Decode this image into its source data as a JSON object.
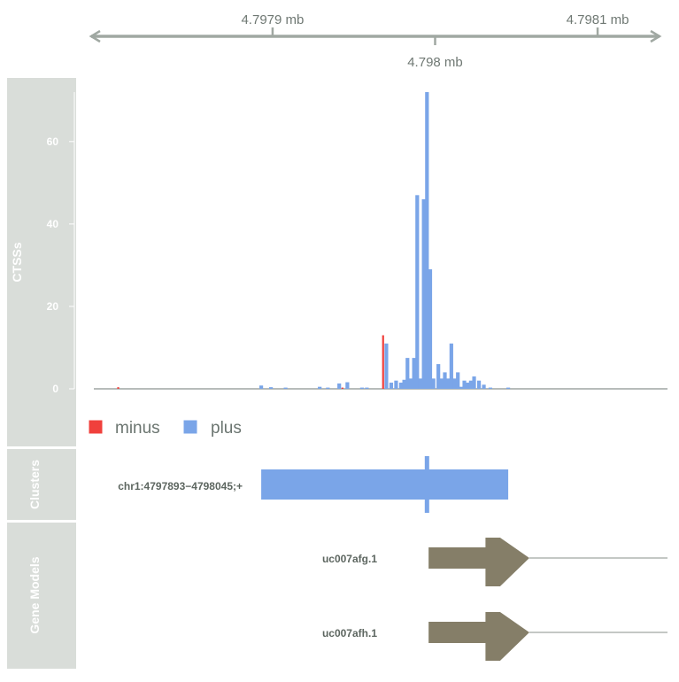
{
  "colors": {
    "plus": "#7aa5e8",
    "minus": "#f0403c",
    "gene": "#857e68",
    "panel_bg": "#d9ddd9",
    "panel_text": "#ffffff",
    "axis": "#a0a8a2",
    "label": "#5d6660",
    "legend_text": "#6b7570"
  },
  "genome_axis": {
    "ticks_above": [
      "4.7979 mb",
      "4.7981 mb"
    ],
    "ticks_below": [
      "4.798 mb"
    ]
  },
  "tracks": {
    "ctss": {
      "title": "CTSSs"
    },
    "clusters": {
      "title": "Clusters"
    },
    "gene_models": {
      "title": "Gene Models"
    }
  },
  "legend": [
    {
      "label": "minus",
      "color": "#f0403c"
    },
    {
      "label": "plus",
      "color": "#7aa5e8"
    }
  ],
  "cluster": {
    "label": "chr1:4797893−4798045;+"
  },
  "genes": [
    {
      "label": "uc007afg.1"
    },
    {
      "label": "uc007afh.1"
    }
  ],
  "chart_data": {
    "type": "bar",
    "title": "",
    "ylabel": "CTSSs",
    "xlabel": "",
    "ylim": [
      0,
      72
    ],
    "yticks": [
      0,
      20,
      40,
      60
    ],
    "x_ticks": [
      {
        "label": "4.7979 mb",
        "value": 4797900
      },
      {
        "label": "4.798 mb",
        "value": 4798000
      },
      {
        "label": "4.7981 mb",
        "value": 4798100
      }
    ],
    "xlim": [
      4797790,
      4798143
    ],
    "series": [
      {
        "name": "plus",
        "x": [
          4797893,
          4797899,
          4797908,
          4797929,
          4797934,
          4797941,
          4797946,
          4797955,
          4797958,
          4797970,
          4797973,
          4797976,
          4797979,
          4797981,
          4797983,
          4797985,
          4797987,
          4797989,
          4797991,
          4797993,
          4797995,
          4797997,
          4797999,
          4798002,
          4798004,
          4798006,
          4798008,
          4798010,
          4798012,
          4798014,
          4798016,
          4798018,
          4798020,
          4798022,
          4798024,
          4798027,
          4798030,
          4798034,
          4798045
        ],
        "values": [
          0.8,
          0.4,
          0.3,
          0.5,
          0.3,
          1.3,
          1.6,
          0.3,
          0.3,
          11,
          1.5,
          2.0,
          1.5,
          2.2,
          7.5,
          2.5,
          7.5,
          47,
          2.5,
          46,
          72,
          29,
          2.5,
          6.0,
          2.5,
          4.0,
          2.5,
          11,
          2.5,
          4.0,
          0.5,
          2.0,
          1.5,
          2.0,
          3.0,
          2.0,
          1.0,
          0.3,
          0.3
        ]
      },
      {
        "name": "minus",
        "x": [
          4797805,
          4797943,
          4797968
        ],
        "values": [
          0.4,
          0.3,
          13
        ]
      }
    ]
  }
}
